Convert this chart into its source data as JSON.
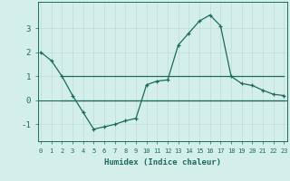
{
  "x": [
    0,
    1,
    2,
    3,
    4,
    5,
    6,
    7,
    8,
    9,
    10,
    11,
    12,
    13,
    14,
    15,
    16,
    17,
    18,
    19,
    20,
    21,
    22,
    23
  ],
  "y_curve": [
    2.0,
    1.65,
    1.0,
    0.2,
    -0.5,
    -1.2,
    -1.1,
    -1.0,
    -0.85,
    -0.75,
    0.65,
    0.8,
    0.85,
    2.3,
    2.8,
    3.3,
    3.55,
    3.1,
    1.0,
    0.7,
    0.62,
    0.42,
    0.25,
    0.2
  ],
  "y_flat": [
    1.0,
    1.0,
    1.0,
    1.0,
    1.0,
    1.0,
    1.0,
    1.0,
    1.0,
    1.0,
    1.0,
    1.0,
    1.0,
    1.0,
    1.0,
    1.0,
    1.0,
    1.0,
    1.0,
    1.0,
    1.0,
    1.0
  ],
  "x_flat": [
    2,
    3,
    4,
    5,
    6,
    7,
    8,
    9,
    10,
    11,
    12,
    13,
    14,
    15,
    16,
    17,
    18,
    19,
    20,
    21,
    22,
    23
  ],
  "y_flat2": [
    0.0,
    0.0,
    0.0,
    0.0,
    0.0,
    0.0,
    0.0,
    0.0,
    0.0,
    0.0,
    0.0,
    0.0,
    0.0,
    0.0,
    0.0,
    0.0,
    0.0,
    0.0,
    0.0,
    0.0,
    0.0,
    0.0
  ],
  "line_color": "#1a6b5e",
  "bg_color": "#d4eeea",
  "grid_color_major": "#c0dcd7",
  "grid_color_minor": "#c0dcd7",
  "xlabel": "Humidex (Indice chaleur)",
  "xtick_labels": [
    "0",
    "1",
    "2",
    "3",
    "4",
    "5",
    "6",
    "7",
    "8",
    "9",
    "10",
    "11",
    "12",
    "13",
    "14",
    "15",
    "16",
    "17",
    "18",
    "19",
    "20",
    "21",
    "22",
    "23"
  ],
  "yticks": [
    -1,
    0,
    1,
    2,
    3
  ],
  "ylim": [
    -1.7,
    4.1
  ],
  "xlim": [
    -0.3,
    23.3
  ]
}
